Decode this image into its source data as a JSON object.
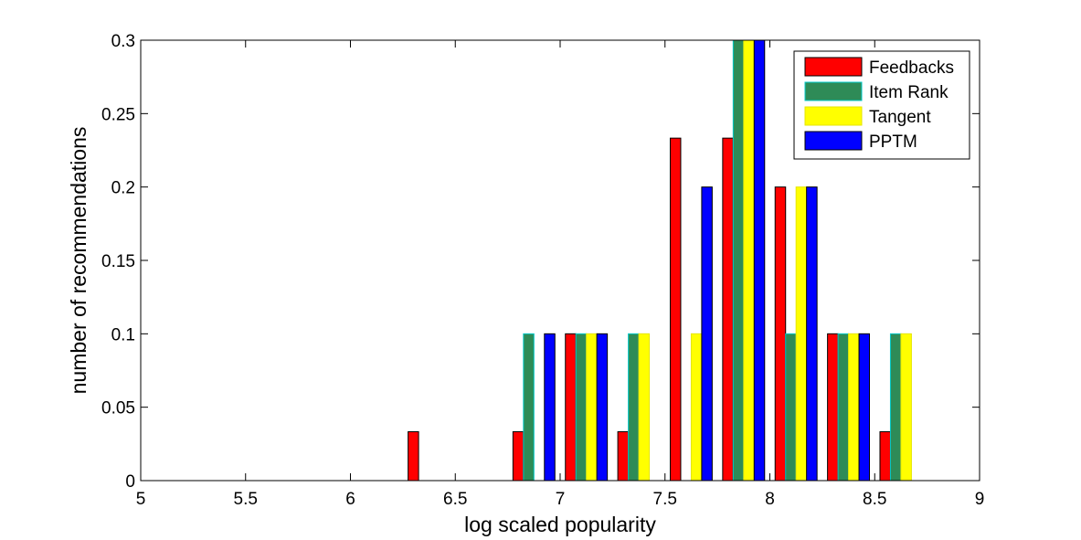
{
  "chart_data": {
    "type": "bar",
    "title": "",
    "xlabel": "log scaled popularity",
    "ylabel": "number of recommendations",
    "xlim": [
      5,
      9
    ],
    "ylim": [
      0,
      0.3
    ],
    "xticks": [
      "5",
      "5.5",
      "6",
      "6.5",
      "7",
      "7.5",
      "8",
      "8.5",
      "9"
    ],
    "yticks": [
      "0",
      "0.05",
      "0.1",
      "0.15",
      "0.2",
      "0.25",
      "0.3"
    ],
    "grid": false,
    "legend_position": "top-right",
    "bin_centers": [
      5.125,
      5.375,
      5.625,
      5.875,
      6.125,
      6.375,
      6.625,
      6.875,
      7.125,
      7.375,
      7.625,
      7.875,
      8.125,
      8.375,
      8.625,
      8.875
    ],
    "series": [
      {
        "name": "Feedbacks",
        "color": "#ff0000",
        "edge": "#000000",
        "values": [
          0,
          0,
          0,
          0,
          0,
          0.0333,
          0,
          0.0333,
          0.1,
          0.0333,
          0.2333,
          0.2333,
          0.2,
          0.1,
          0.0333,
          0
        ]
      },
      {
        "name": "Item Rank",
        "color": "#2e8b57",
        "edge": "#00c8c8",
        "values": [
          0,
          0,
          0,
          0,
          0,
          0,
          0,
          0.1,
          0.1,
          0.1,
          0,
          0.3,
          0.1,
          0.1,
          0.1,
          0
        ]
      },
      {
        "name": "Tangent",
        "color": "#ffff00",
        "edge": "#e6e600",
        "values": [
          0,
          0,
          0,
          0,
          0,
          0,
          0,
          0,
          0.1,
          0.1,
          0.1,
          0.3,
          0.2,
          0.1,
          0.1,
          0
        ]
      },
      {
        "name": "PPTM",
        "color": "#0000ff",
        "edge": "#000000",
        "values": [
          0,
          0,
          0,
          0,
          0,
          0,
          0,
          0.1,
          0.1,
          0,
          0.2,
          0.3,
          0.2,
          0.1,
          0,
          0
        ]
      }
    ]
  }
}
